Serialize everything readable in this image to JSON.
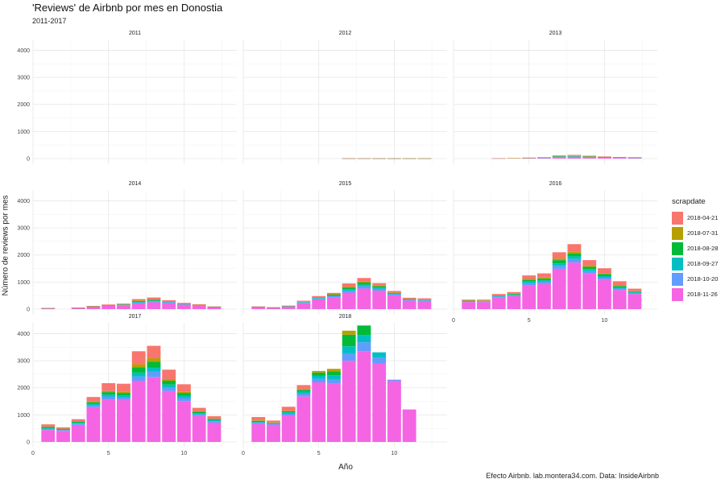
{
  "title": "'Reviews' de Airbnb por mes en Donostia",
  "subtitle": "2011-2017",
  "caption": "Efecto Airbnb. lab.montera34.com. Data: InsideAirbnb",
  "xlabel": "Año",
  "ylabel": "Número de reviews por mes",
  "legend": {
    "title": "scrapdate",
    "items": [
      {
        "label": "2018-04-21",
        "color": "#F8766D"
      },
      {
        "label": "2018-07-31",
        "color": "#B79F00"
      },
      {
        "label": "2018-08-28",
        "color": "#00BA38"
      },
      {
        "label": "2018-09-27",
        "color": "#00BFC4"
      },
      {
        "label": "2018-10-20",
        "color": "#619CFF"
      },
      {
        "label": "2018-11-26",
        "color": "#F564E3"
      }
    ]
  },
  "chart_data": {
    "type": "bar",
    "stacked": true,
    "facet_by": "year",
    "x_field": "month",
    "xlim": [
      0,
      13.5
    ],
    "x_ticks": [
      0,
      5,
      10
    ],
    "ylim": [
      0,
      4400
    ],
    "y_ticks": [
      0,
      1000,
      2000,
      3000,
      4000
    ],
    "grid": true,
    "legend_position": "right",
    "series_names": [
      "2018-04-21",
      "2018-07-31",
      "2018-08-28",
      "2018-09-27",
      "2018-10-20",
      "2018-11-26"
    ],
    "facets": [
      {
        "label": "2011",
        "bars": []
      },
      {
        "label": "2012",
        "bars": [
          {
            "month": 7,
            "values": [
              3,
              1,
              1,
              1,
              1,
              6
            ]
          },
          {
            "month": 8,
            "values": [
              3,
              1,
              1,
              1,
              1,
              6
            ]
          },
          {
            "month": 9,
            "values": [
              2,
              1,
              1,
              1,
              1,
              4
            ]
          },
          {
            "month": 10,
            "values": [
              2,
              1,
              1,
              1,
              1,
              4
            ]
          },
          {
            "month": 11,
            "values": [
              2,
              1,
              1,
              1,
              1,
              3
            ]
          },
          {
            "month": 12,
            "values": [
              2,
              1,
              1,
              1,
              1,
              3
            ]
          }
        ]
      },
      {
        "label": "2013",
        "bars": [
          {
            "month": 3,
            "values": [
              3,
              1,
              1,
              1,
              1,
              8
            ]
          },
          {
            "month": 4,
            "values": [
              4,
              1,
              1,
              1,
              1,
              12
            ]
          },
          {
            "month": 5,
            "values": [
              6,
              2,
              2,
              2,
              2,
              22
            ]
          },
          {
            "month": 6,
            "values": [
              8,
              2,
              2,
              3,
              3,
              32
            ]
          },
          {
            "month": 7,
            "values": [
              25,
              10,
              12,
              8,
              10,
              55
            ]
          },
          {
            "month": 8,
            "values": [
              30,
              12,
              14,
              9,
              12,
              60
            ]
          },
          {
            "month": 9,
            "values": [
              20,
              8,
              9,
              6,
              8,
              55
            ]
          },
          {
            "month": 10,
            "values": [
              15,
              4,
              4,
              4,
              5,
              48
            ]
          },
          {
            "month": 11,
            "values": [
              10,
              3,
              3,
              3,
              3,
              35
            ]
          },
          {
            "month": 12,
            "values": [
              9,
              2,
              2,
              2,
              3,
              32
            ]
          }
        ]
      },
      {
        "label": "2014",
        "bars": [
          {
            "month": 1,
            "values": [
              5,
              1,
              1,
              1,
              2,
              30
            ]
          },
          {
            "month": 3,
            "values": [
              6,
              2,
              2,
              2,
              3,
              40
            ]
          },
          {
            "month": 4,
            "values": [
              15,
              5,
              5,
              5,
              10,
              80
            ]
          },
          {
            "month": 5,
            "values": [
              20,
              5,
              8,
              8,
              12,
              120
            ]
          },
          {
            "month": 6,
            "values": [
              25,
              6,
              10,
              10,
              15,
              140
            ]
          },
          {
            "month": 7,
            "values": [
              50,
              25,
              30,
              25,
              30,
              210
            ]
          },
          {
            "month": 8,
            "values": [
              60,
              25,
              30,
              25,
              35,
              255
            ]
          },
          {
            "month": 9,
            "values": [
              40,
              10,
              15,
              15,
              25,
              225
            ]
          },
          {
            "month": 10,
            "values": [
              25,
              5,
              10,
              10,
              15,
              165
            ]
          },
          {
            "month": 11,
            "values": [
              20,
              5,
              8,
              8,
              12,
              127
            ]
          },
          {
            "month": 12,
            "values": [
              12,
              3,
              4,
              5,
              8,
              68
            ]
          }
        ]
      },
      {
        "label": "2015",
        "bars": [
          {
            "month": 1,
            "values": [
              10,
              3,
              4,
              4,
              8,
              71
            ]
          },
          {
            "month": 2,
            "values": [
              8,
              2,
              3,
              3,
              6,
              48
            ]
          },
          {
            "month": 3,
            "values": [
              12,
              3,
              5,
              5,
              10,
              95
            ]
          },
          {
            "month": 4,
            "values": [
              25,
              8,
              15,
              15,
              20,
              227
            ]
          },
          {
            "month": 5,
            "values": [
              40,
              10,
              20,
              20,
              30,
              360
            ]
          },
          {
            "month": 6,
            "values": [
              50,
              15,
              30,
              30,
              40,
              435
            ]
          },
          {
            "month": 7,
            "values": [
              120,
              30,
              60,
              60,
              70,
              610
            ]
          },
          {
            "month": 8,
            "values": [
              130,
              40,
              70,
              70,
              80,
              760
            ]
          },
          {
            "month": 9,
            "values": [
              90,
              25,
              50,
              50,
              60,
              685
            ]
          },
          {
            "month": 10,
            "values": [
              60,
              12,
              25,
              25,
              40,
              508
            ]
          },
          {
            "month": 11,
            "values": [
              40,
              8,
              15,
              15,
              25,
              317
            ]
          },
          {
            "month": 12,
            "values": [
              40,
              8,
              15,
              15,
              25,
              297
            ]
          }
        ]
      },
      {
        "label": "2016",
        "bars": [
          {
            "month": 1,
            "values": [
              30,
              8,
              15,
              15,
              20,
              262
            ]
          },
          {
            "month": 2,
            "values": [
              35,
              8,
              15,
              15,
              20,
              257
            ]
          },
          {
            "month": 3,
            "values": [
              45,
              10,
              20,
              20,
              30,
              435
            ]
          },
          {
            "month": 4,
            "values": [
              55,
              12,
              25,
              25,
              35,
              478
            ]
          },
          {
            "month": 5,
            "values": [
              130,
              35,
              60,
              60,
              80,
              880
            ]
          },
          {
            "month": 6,
            "values": [
              155,
              40,
              60,
              60,
              80,
              925
            ]
          },
          {
            "month": 7,
            "values": [
              230,
              60,
              120,
              90,
              110,
              1490
            ]
          },
          {
            "month": 8,
            "values": [
              280,
              60,
              110,
              100,
              130,
              1720
            ]
          },
          {
            "month": 9,
            "values": [
              210,
              40,
              80,
              75,
              90,
              1315
            ]
          },
          {
            "month": 10,
            "values": [
              190,
              30,
              70,
              60,
              80,
              1080
            ]
          },
          {
            "month": 11,
            "values": [
              150,
              25,
              50,
              45,
              55,
              705
            ]
          },
          {
            "month": 12,
            "values": [
              80,
              15,
              30,
              30,
              40,
              560
            ]
          }
        ]
      },
      {
        "label": "2017",
        "bars": [
          {
            "month": 1,
            "values": [
              80,
              20,
              40,
              30,
              40,
              440
            ]
          },
          {
            "month": 2,
            "values": [
              50,
              10,
              20,
              20,
              30,
              410
            ]
          },
          {
            "month": 3,
            "values": [
              80,
              15,
              35,
              35,
              45,
              630
            ]
          },
          {
            "month": 4,
            "values": [
              170,
              25,
              60,
              50,
              70,
              1285
            ]
          },
          {
            "month": 5,
            "values": [
              290,
              40,
              90,
              70,
              110,
              1570
            ]
          },
          {
            "month": 6,
            "values": [
              300,
              40,
              90,
              70,
              100,
              1550
            ]
          },
          {
            "month": 7,
            "values": [
              480,
              110,
              200,
              140,
              160,
              2260
            ]
          },
          {
            "month": 8,
            "values": [
              460,
              130,
              210,
              160,
              190,
              2400
            ]
          },
          {
            "month": 9,
            "values": [
              350,
              60,
              140,
              110,
              130,
              1880
            ]
          },
          {
            "month": 10,
            "values": [
              280,
              40,
              100,
              90,
              110,
              1510
            ]
          },
          {
            "month": 11,
            "values": [
              120,
              20,
              50,
              50,
              60,
              960
            ]
          },
          {
            "month": 12,
            "values": [
              90,
              15,
              40,
              40,
              50,
              715
            ]
          }
        ]
      },
      {
        "label": "2018",
        "bars": [
          {
            "month": 1,
            "values": [
              120,
              20,
              40,
              30,
              40,
              670
            ]
          },
          {
            "month": 2,
            "values": [
              70,
              10,
              20,
              20,
              30,
              640
            ]
          },
          {
            "month": 3,
            "values": [
              150,
              20,
              40,
              50,
              60,
              980
            ]
          },
          {
            "month": 4,
            "values": [
              150,
              25,
              70,
              70,
              100,
              1685
            ]
          },
          {
            "month": 5,
            "values": [
              0,
              60,
              120,
              110,
              130,
              2200
            ]
          },
          {
            "month": 6,
            "values": [
              0,
              90,
              150,
              140,
              170,
              2150
            ]
          },
          {
            "month": 7,
            "values": [
              0,
              150,
              430,
              260,
              270,
              3000
            ]
          },
          {
            "month": 8,
            "values": [
              0,
              0,
              350,
              270,
              330,
              3350
            ]
          },
          {
            "month": 9,
            "values": [
              0,
              0,
              0,
              200,
              210,
              2900
            ]
          },
          {
            "month": 10,
            "values": [
              0,
              0,
              0,
              0,
              40,
              2260
            ]
          },
          {
            "month": 11,
            "values": [
              0,
              0,
              0,
              0,
              0,
              1200
            ]
          }
        ]
      }
    ]
  }
}
